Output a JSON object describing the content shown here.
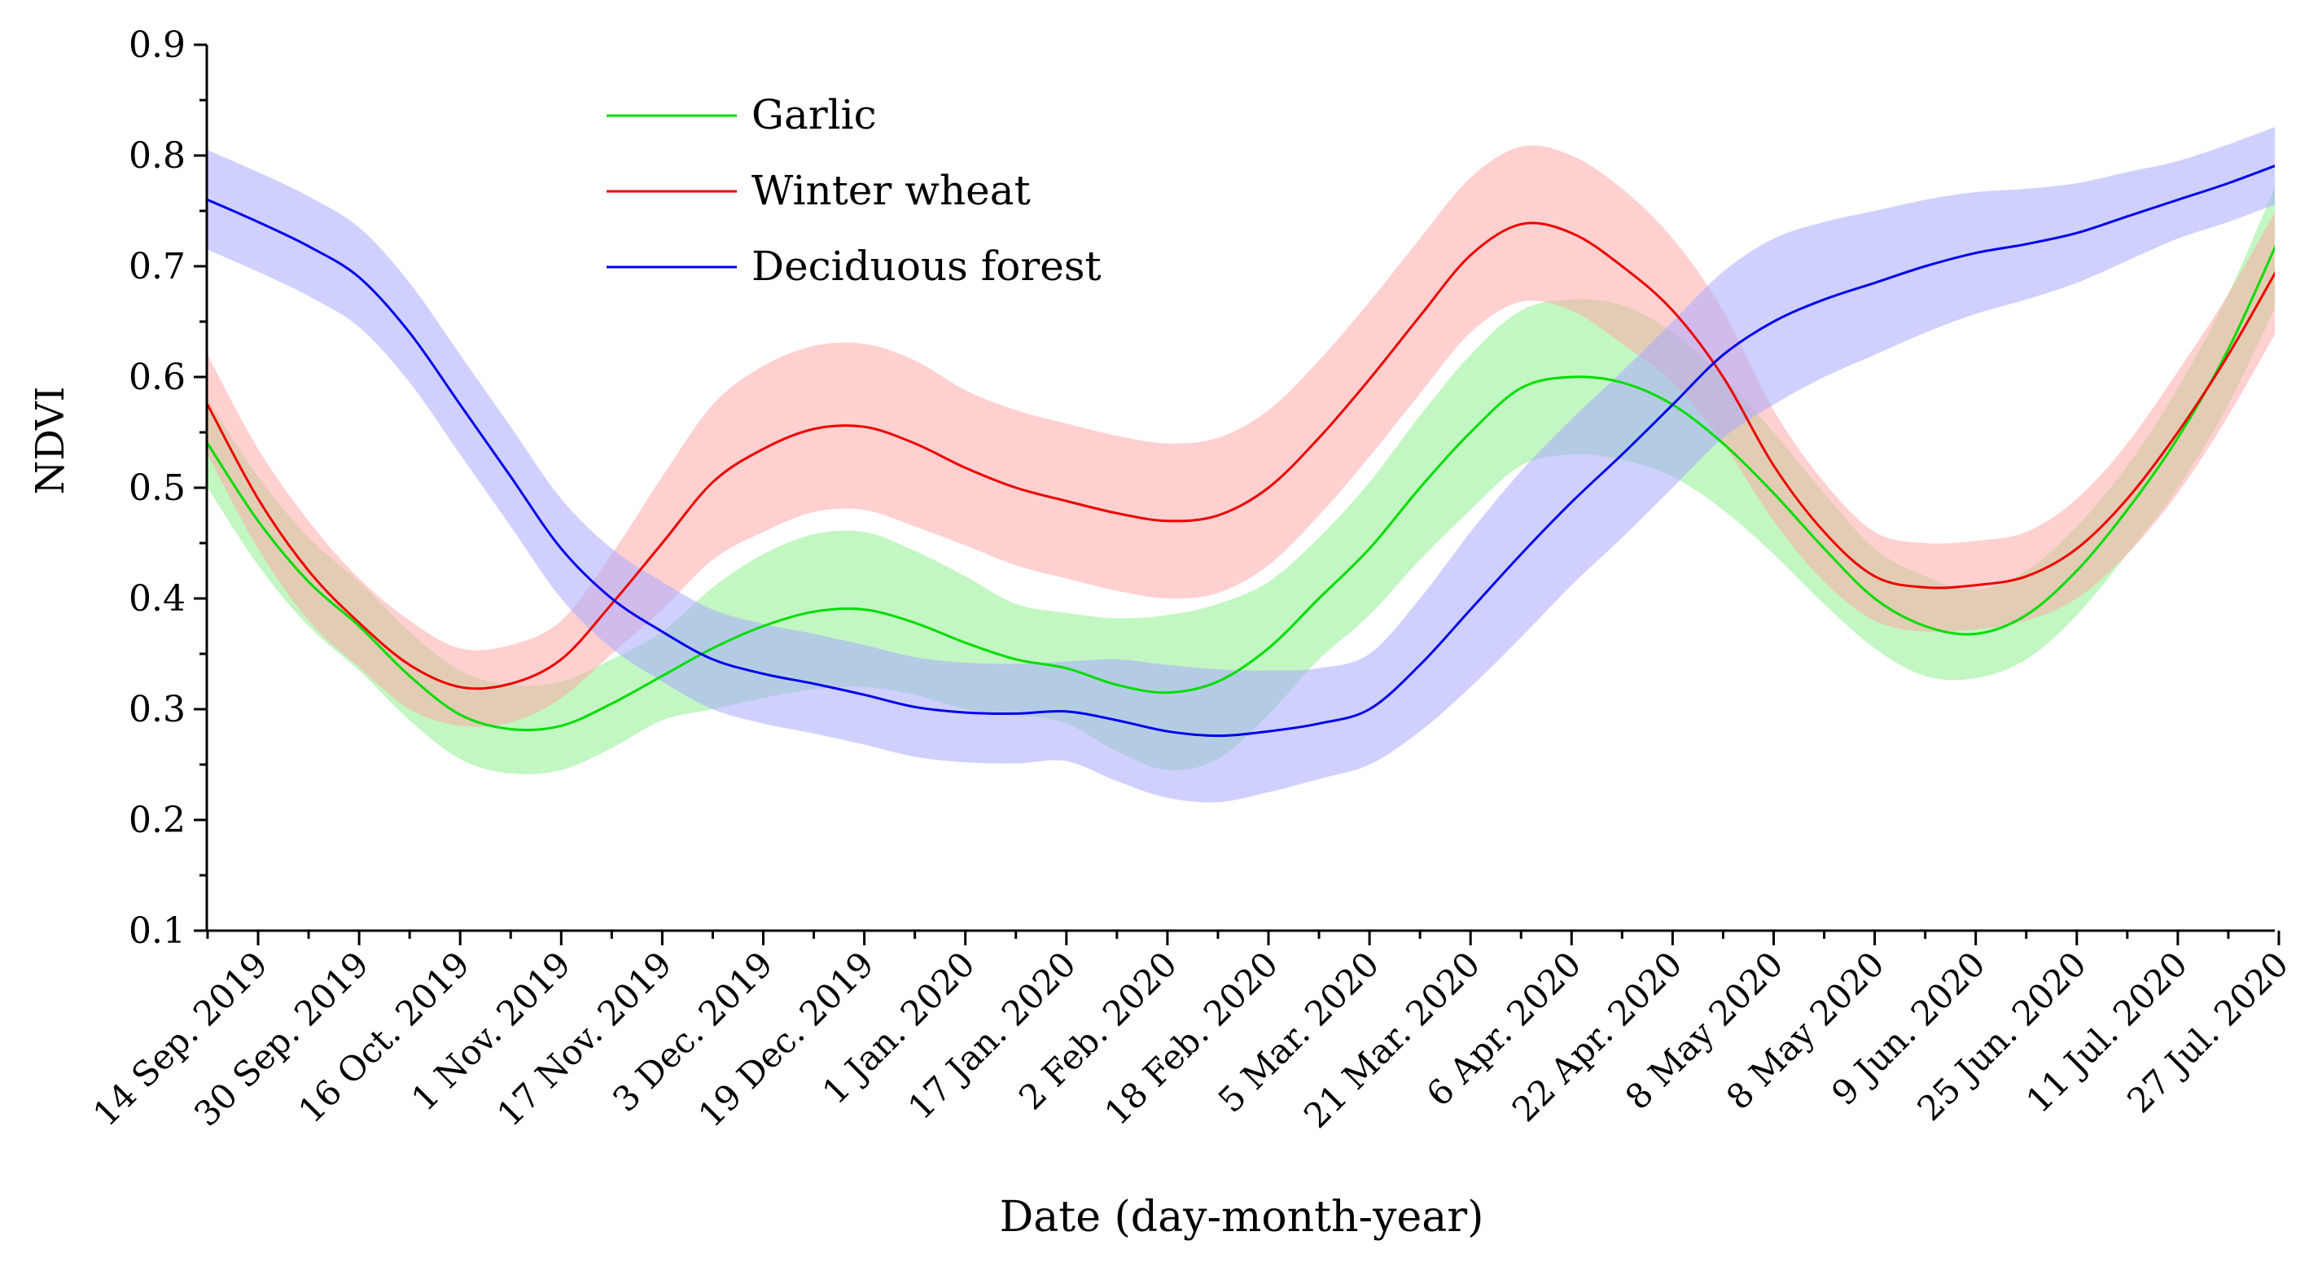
{
  "chart_data": {
    "type": "line",
    "title": "",
    "xlabel": "Date (day-month-year)",
    "ylabel": "NDVI",
    "ylim": [
      0.1,
      0.9
    ],
    "yticks": [
      "0.1",
      "0.2",
      "0.3",
      "0.4",
      "0.5",
      "0.6",
      "0.7",
      "0.8",
      "0.9"
    ],
    "categories": [
      "14 Sep. 2019",
      "30 Sep. 2019",
      "16 Oct. 2019",
      "1 Nov. 2019",
      "17 Nov. 2019",
      "3 Dec. 2019",
      "19 Dec. 2019",
      "1 Jan. 2020",
      "17 Jan. 2020",
      "2 Feb. 2020",
      "18 Feb. 2020",
      "5 Mar. 2020",
      "21 Mar. 2020",
      "6 Apr. 2020",
      "22 Apr. 2020",
      "8 May 2020",
      "8 May 2020",
      "9 Jun. 2020",
      "25 Jun. 2020",
      "11 Jul. 2020",
      "27 Jul. 2020"
    ],
    "grid": false,
    "legend_position": "top-left",
    "series": [
      {
        "name": "Garlic",
        "color": "#00dd00",
        "band_color": "#90ee90",
        "x": [
          -0.5,
          0,
          0.5,
          1,
          1.5,
          2,
          2.5,
          3,
          3.5,
          4,
          4.5,
          5,
          5.5,
          6,
          6.5,
          7,
          7.5,
          8,
          8.5,
          9,
          9.5,
          10,
          10.5,
          11,
          11.5,
          12,
          12.5,
          13,
          13.5,
          14,
          14.5,
          15,
          15.5,
          16,
          16.5,
          17,
          17.5,
          18,
          18.5,
          19,
          19.5,
          20
        ],
        "values": [
          0.54,
          0.47,
          0.415,
          0.375,
          0.33,
          0.295,
          0.282,
          0.285,
          0.305,
          0.33,
          0.355,
          0.375,
          0.388,
          0.39,
          0.378,
          0.36,
          0.345,
          0.337,
          0.322,
          0.315,
          0.325,
          0.355,
          0.4,
          0.445,
          0.5,
          0.55,
          0.59,
          0.6,
          0.595,
          0.575,
          0.54,
          0.495,
          0.445,
          0.4,
          0.375,
          0.368,
          0.385,
          0.425,
          0.48,
          0.545,
          0.625,
          0.725
        ],
        "band": [
          0.04,
          0.04,
          0.04,
          0.04,
          0.04,
          0.04,
          0.04,
          0.04,
          0.04,
          0.04,
          0.055,
          0.065,
          0.07,
          0.07,
          0.065,
          0.06,
          0.05,
          0.05,
          0.06,
          0.07,
          0.07,
          0.06,
          0.055,
          0.06,
          0.065,
          0.07,
          0.07,
          0.07,
          0.07,
          0.065,
          0.06,
          0.055,
          0.05,
          0.045,
          0.045,
          0.04,
          0.04,
          0.04,
          0.04,
          0.045,
          0.05,
          0.055
        ]
      },
      {
        "name": "Winter wheat",
        "color": "#ee0000",
        "band_color": "#ffaaaa",
        "x": [
          -0.5,
          0,
          0.5,
          1,
          1.5,
          2,
          2.5,
          3,
          3.5,
          4,
          4.5,
          5,
          5.5,
          6,
          6.5,
          7,
          7.5,
          8,
          8.5,
          9,
          9.5,
          10,
          10.5,
          11,
          11.5,
          12,
          12.5,
          13,
          13.5,
          14,
          14.5,
          15,
          15.5,
          16,
          16.5,
          17,
          17.5,
          18,
          18.5,
          19,
          19.5,
          20
        ],
        "values": [
          0.575,
          0.49,
          0.425,
          0.378,
          0.34,
          0.32,
          0.323,
          0.345,
          0.395,
          0.45,
          0.505,
          0.535,
          0.553,
          0.555,
          0.54,
          0.518,
          0.5,
          0.488,
          0.477,
          0.47,
          0.475,
          0.5,
          0.545,
          0.598,
          0.655,
          0.71,
          0.738,
          0.73,
          0.7,
          0.66,
          0.6,
          0.52,
          0.46,
          0.42,
          0.41,
          0.412,
          0.42,
          0.445,
          0.49,
          0.55,
          0.62,
          0.7
        ],
        "band": [
          0.045,
          0.045,
          0.045,
          0.04,
          0.04,
          0.035,
          0.035,
          0.035,
          0.045,
          0.06,
          0.07,
          0.075,
          0.075,
          0.075,
          0.075,
          0.07,
          0.07,
          0.07,
          0.07,
          0.07,
          0.07,
          0.07,
          0.07,
          0.07,
          0.07,
          0.07,
          0.07,
          0.07,
          0.07,
          0.065,
          0.06,
          0.05,
          0.045,
          0.04,
          0.04,
          0.04,
          0.04,
          0.045,
          0.05,
          0.055,
          0.055,
          0.055
        ]
      },
      {
        "name": "Deciduous forest",
        "color": "#0000ee",
        "band_color": "#aaaaff",
        "x": [
          -0.5,
          0,
          0.5,
          1,
          1.5,
          2,
          2.5,
          3,
          3.5,
          4,
          4.5,
          5,
          5.5,
          6,
          6.5,
          7,
          7.5,
          8,
          8.5,
          9,
          9.5,
          10,
          10.5,
          11,
          11.5,
          12,
          12.5,
          13,
          13.5,
          14,
          14.5,
          15,
          15.5,
          16,
          16.5,
          17,
          17.5,
          18,
          18.5,
          19,
          19.5,
          20
        ],
        "values": [
          0.76,
          0.74,
          0.718,
          0.69,
          0.64,
          0.575,
          0.51,
          0.445,
          0.4,
          0.37,
          0.345,
          0.332,
          0.323,
          0.313,
          0.302,
          0.297,
          0.296,
          0.298,
          0.29,
          0.28,
          0.276,
          0.28,
          0.287,
          0.3,
          0.34,
          0.39,
          0.44,
          0.487,
          0.53,
          0.575,
          0.62,
          0.65,
          0.67,
          0.685,
          0.7,
          0.712,
          0.72,
          0.73,
          0.745,
          0.76,
          0.775,
          0.792
        ],
        "band": [
          0.045,
          0.045,
          0.045,
          0.045,
          0.045,
          0.045,
          0.045,
          0.045,
          0.045,
          0.045,
          0.045,
          0.045,
          0.045,
          0.045,
          0.045,
          0.045,
          0.045,
          0.045,
          0.055,
          0.06,
          0.06,
          0.055,
          0.05,
          0.05,
          0.06,
          0.07,
          0.075,
          0.075,
          0.075,
          0.075,
          0.075,
          0.075,
          0.07,
          0.065,
          0.06,
          0.055,
          0.05,
          0.045,
          0.04,
          0.035,
          0.035,
          0.035
        ]
      }
    ]
  }
}
